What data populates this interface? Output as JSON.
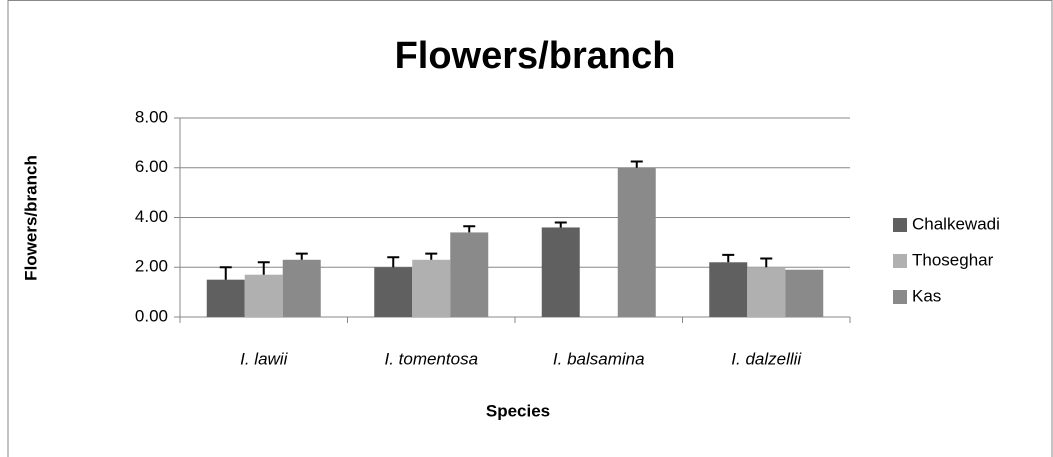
{
  "chart_data": {
    "type": "bar",
    "title": "Flowers/branch",
    "x_label": "Species",
    "y_label": "Flowers/branch",
    "categories": [
      "I. lawii",
      "I. tomentosa",
      "I. balsamina",
      "I. dalzellii"
    ],
    "series": [
      {
        "name": "Chalkewadi",
        "color": "#606060",
        "values": [
          1.5,
          2.0,
          3.6,
          2.2
        ],
        "errors": [
          0.5,
          0.4,
          0.2,
          0.3
        ]
      },
      {
        "name": "Thoseghar",
        "color": "#b0b0b0",
        "values": [
          1.7,
          2.3,
          null,
          2.0
        ],
        "errors": [
          0.5,
          0.25,
          null,
          0.35
        ]
      },
      {
        "name": "Kas",
        "color": "#8a8a8a",
        "values": [
          2.3,
          3.4,
          6.0,
          1.9
        ],
        "errors": [
          0.25,
          0.25,
          0.25,
          null
        ]
      }
    ],
    "ylim": [
      0,
      8
    ],
    "yticks": [
      {
        "value": 0,
        "label": "0.00"
      },
      {
        "value": 2,
        "label": "2.00"
      },
      {
        "value": 4,
        "label": "4.00"
      },
      {
        "value": 6,
        "label": "6.00"
      },
      {
        "value": 8,
        "label": "8.00"
      }
    ],
    "grid": true,
    "legend": "right"
  }
}
